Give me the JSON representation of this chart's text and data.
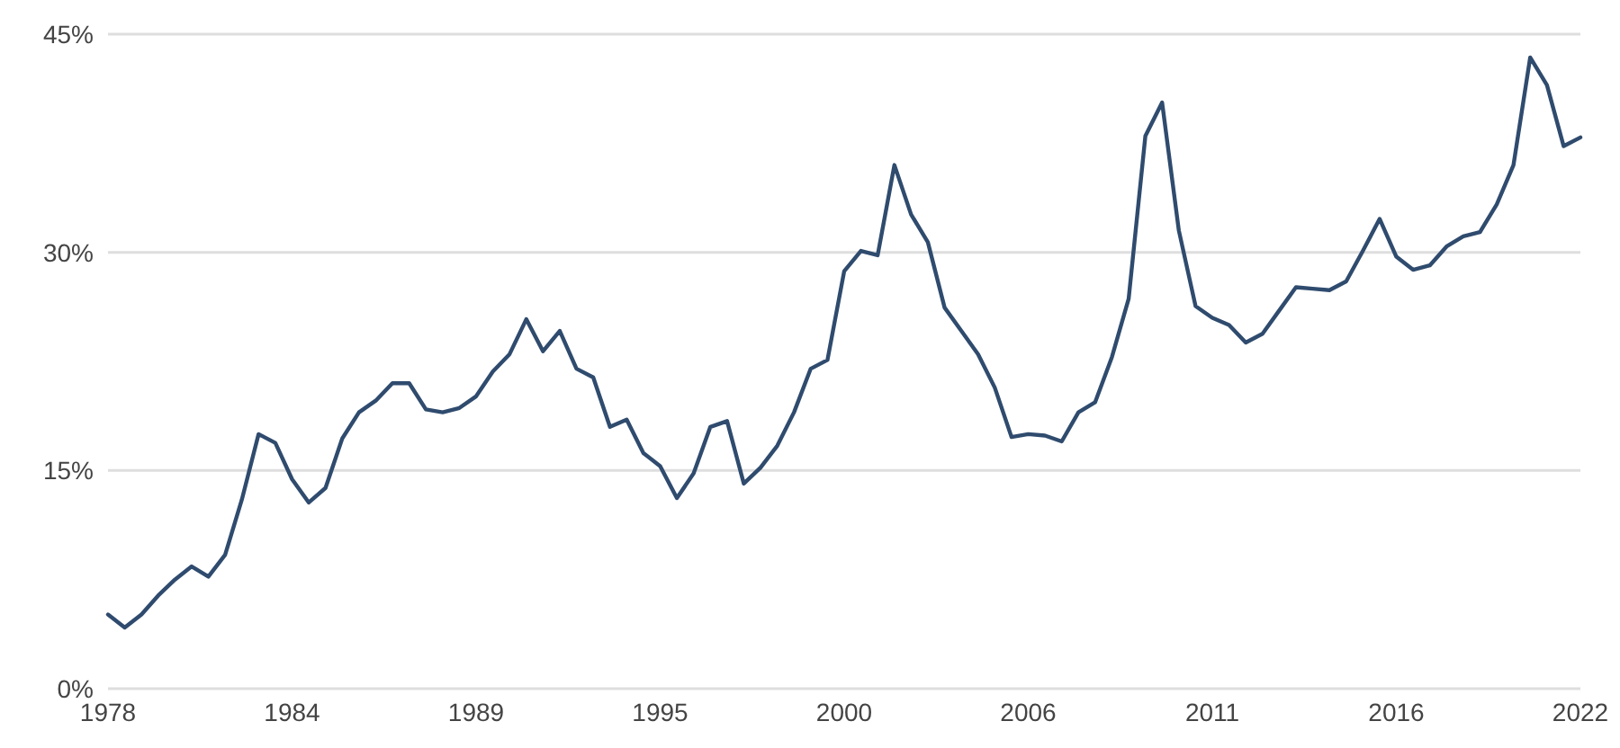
{
  "chart_data": {
    "type": "line",
    "categories": [
      "1978",
      null,
      null,
      null,
      null,
      null,
      null,
      null,
      null,
      null,
      null,
      "1984",
      null,
      null,
      null,
      null,
      null,
      null,
      null,
      null,
      null,
      null,
      "1989",
      null,
      null,
      null,
      null,
      null,
      null,
      null,
      null,
      null,
      null,
      "1995",
      null,
      null,
      null,
      null,
      null,
      null,
      null,
      null,
      null,
      null,
      "2000",
      null,
      null,
      null,
      null,
      null,
      null,
      null,
      null,
      null,
      null,
      "2006",
      null,
      null,
      null,
      null,
      null,
      null,
      null,
      null,
      null,
      null,
      "2011",
      null,
      null,
      null,
      null,
      null,
      null,
      null,
      null,
      null,
      null,
      "2016",
      null,
      null,
      null,
      null,
      null,
      null,
      null,
      null,
      null,
      null,
      "2022"
    ],
    "series": [
      {
        "color": "#2f4b6e",
        "values": [
          5.1,
          4.2,
          5.1,
          6.4,
          7.5,
          8.4,
          7.7,
          9.2,
          13.0,
          17.5,
          16.9,
          14.4,
          12.8,
          13.8,
          17.2,
          19.0,
          19.8,
          21.0,
          21.0,
          19.2,
          19.0,
          19.3,
          20.1,
          21.8,
          23.0,
          25.4,
          23.2,
          24.6,
          22.0,
          21.4,
          18.0,
          18.5,
          16.2,
          15.3,
          13.1,
          14.8,
          18.0,
          18.4,
          14.1,
          15.2,
          16.7,
          19.0,
          22.0,
          22.6,
          28.7,
          30.1,
          29.8,
          36.0,
          32.6,
          30.7,
          26.2,
          24.6,
          23.0,
          20.7,
          17.3,
          17.5,
          17.4,
          17.0,
          19.0,
          19.7,
          22.8,
          26.8,
          38.0,
          40.3,
          31.5,
          26.3,
          25.5,
          25.0,
          23.8,
          24.4,
          26.0,
          27.6,
          27.5,
          27.4,
          28.0,
          30.1,
          32.3,
          29.7,
          28.8,
          29.1,
          30.4,
          31.1,
          31.4,
          33.3,
          36.0,
          43.4,
          41.5,
          37.3,
          37.9
        ]
      }
    ],
    "ylim": [
      0,
      45
    ],
    "yticks": [
      {
        "value": 0,
        "label": "0%"
      },
      {
        "value": 15,
        "label": "15%"
      },
      {
        "value": 30,
        "label": "30%"
      },
      {
        "value": 45,
        "label": "45%"
      }
    ],
    "grid": "y",
    "marker": "none",
    "line_style": "solid"
  }
}
